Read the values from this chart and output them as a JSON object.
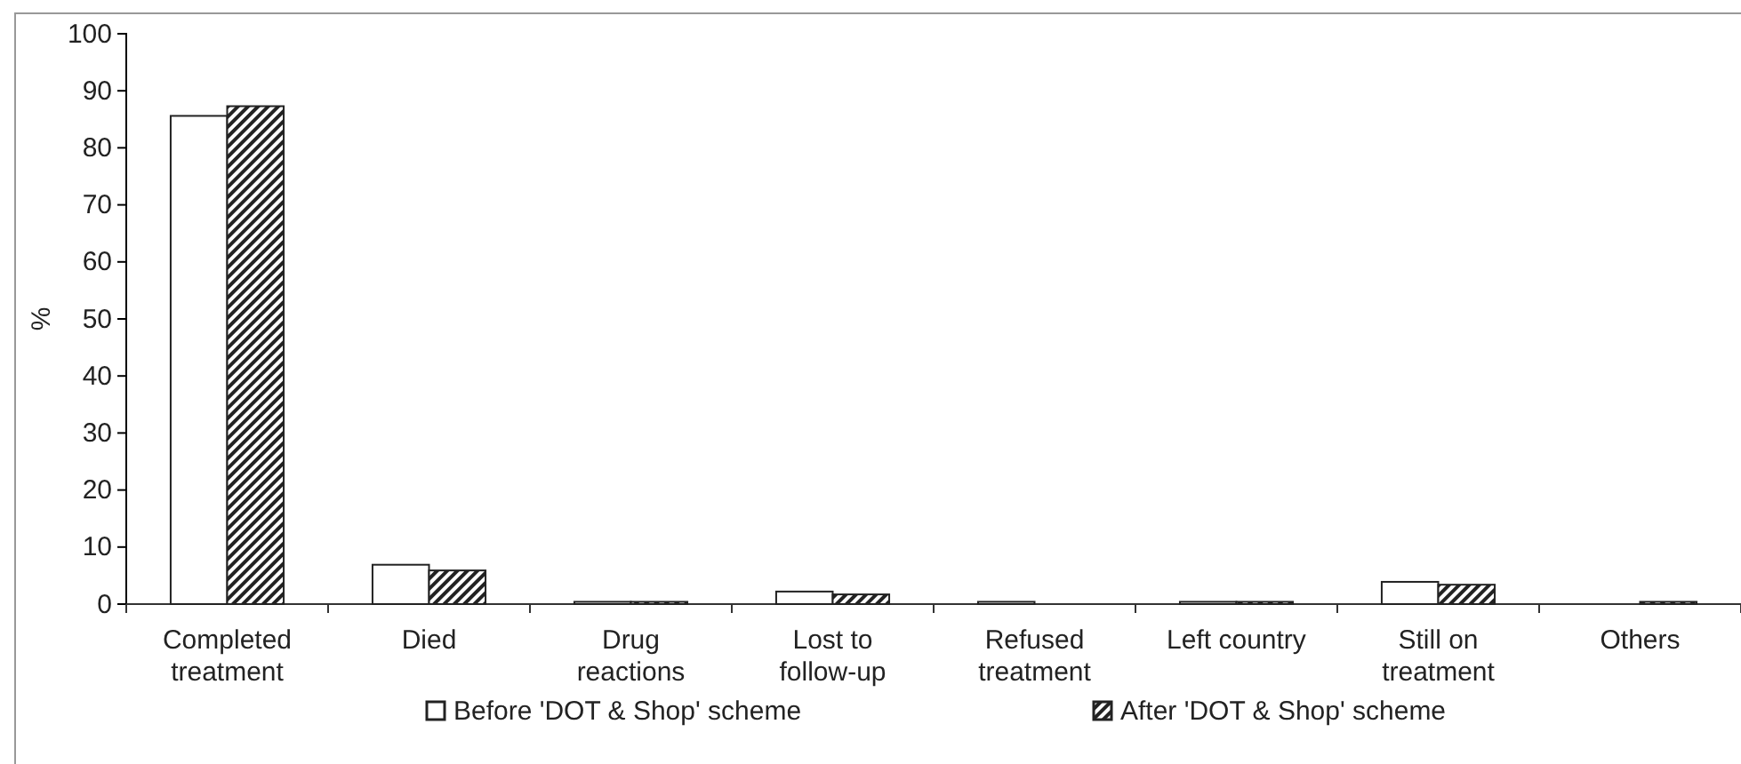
{
  "chart_data": {
    "type": "bar",
    "ylabel": "%",
    "categories": [
      "Completed\ntreatment",
      "Died",
      "Drug\nreactions",
      "Lost to\nfollow-up",
      "Refused\ntreatment",
      "Left country",
      "Still on\ntreatment",
      "Others"
    ],
    "series": [
      {
        "name": "Before 'DOT & Shop' scheme",
        "color": "#ffffff",
        "values": [
          85.6,
          6.9,
          0.4,
          2.2,
          0.4,
          0.4,
          3.9,
          0
        ]
      },
      {
        "name": "After 'DOT & Shop' scheme",
        "color": "#222222",
        "values": [
          87.3,
          5.9,
          0.4,
          1.7,
          0,
          0.4,
          3.4,
          0.4
        ]
      }
    ],
    "ylim": [
      0,
      100
    ],
    "yticks": [
      0,
      10,
      20,
      30,
      40,
      50,
      60,
      70,
      80,
      90,
      100
    ],
    "grid": false,
    "legend": "bottom"
  }
}
